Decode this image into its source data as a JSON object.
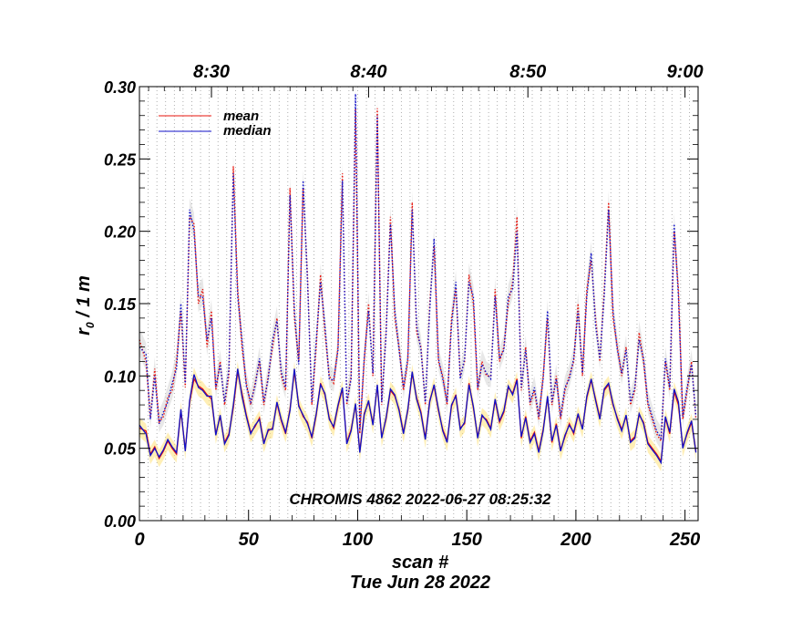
{
  "chart_data": {
    "type": "line",
    "title": "",
    "annotation": "CHROMIS 4862 2022-06-27 08:25:32",
    "xlabel": "scan #",
    "date_label": "Tue Jun 28 2022",
    "ylabel_main": "r",
    "ylabel_sub": "0",
    "ylabel_rest": " / 1 m",
    "xlim": [
      0,
      256
    ],
    "ylim": [
      0.0,
      0.3
    ],
    "x_ticks": [
      "0",
      "50",
      "100",
      "150",
      "200",
      "250"
    ],
    "y_ticks": [
      "0.00",
      "0.05",
      "0.10",
      "0.15",
      "0.20",
      "0.25",
      "0.30"
    ],
    "top_axis_ticks": [
      "8:30",
      "8:40",
      "8:50",
      "9:00"
    ],
    "top_axis_tick_scans": [
      33,
      105,
      178,
      250
    ],
    "legend_placement": "top-left",
    "grid": "vertical dotted lines at every scan boundary",
    "colors": {
      "mean": "#e8140c",
      "median": "#1010c8",
      "band_yellow": "#ffe27a",
      "band_gray": "#d8d8d8",
      "grid": "#9a9a9a"
    },
    "series": [
      {
        "name": "mean",
        "style": "solid",
        "x": [
          0,
          3,
          5,
          7,
          9,
          11,
          13,
          15,
          17,
          19,
          21,
          23,
          25,
          27,
          29,
          31,
          33,
          35,
          37,
          39,
          41,
          43,
          45,
          47,
          49,
          51,
          53,
          55,
          57,
          59,
          61,
          63,
          65,
          67,
          69,
          71,
          73,
          75,
          77,
          79,
          81,
          83,
          85,
          87,
          89,
          91,
          93,
          95,
          97,
          99,
          101,
          103,
          105,
          107,
          109,
          111,
          113,
          115,
          117,
          119,
          121,
          123,
          125,
          127,
          129,
          131,
          133,
          135,
          137,
          139,
          141,
          143,
          145,
          147,
          149,
          151,
          153,
          155,
          157,
          159,
          161,
          163,
          165,
          167,
          169,
          171,
          173,
          175,
          177,
          179,
          181,
          183,
          185,
          187,
          189,
          191,
          193,
          195,
          197,
          199,
          201,
          203,
          205,
          207,
          209,
          211,
          213,
          215,
          217,
          219,
          221,
          223,
          225,
          227,
          229,
          231,
          233,
          235,
          237,
          239,
          241,
          243,
          245,
          247,
          249,
          251,
          253,
          255
        ],
        "values": [
          0.064,
          0.062,
          0.046,
          0.051,
          0.043,
          0.048,
          0.055,
          0.05,
          0.046,
          0.076,
          0.049,
          0.082,
          0.098,
          0.093,
          0.091,
          0.087,
          0.084,
          0.06,
          0.072,
          0.054,
          0.06,
          0.078,
          0.103,
          0.088,
          0.073,
          0.061,
          0.065,
          0.071,
          0.054,
          0.062,
          0.064,
          0.081,
          0.069,
          0.06,
          0.077,
          0.103,
          0.08,
          0.072,
          0.068,
          0.057,
          0.073,
          0.095,
          0.087,
          0.071,
          0.064,
          0.079,
          0.091,
          0.054,
          0.063,
          0.08,
          0.048,
          0.074,
          0.082,
          0.067,
          0.093,
          0.058,
          0.07,
          0.09,
          0.086,
          0.077,
          0.061,
          0.076,
          0.102,
          0.085,
          0.075,
          0.057,
          0.083,
          0.093,
          0.076,
          0.063,
          0.055,
          0.079,
          0.087,
          0.064,
          0.067,
          0.095,
          0.078,
          0.058,
          0.072,
          0.07,
          0.064,
          0.083,
          0.068,
          0.075,
          0.092,
          0.088,
          0.098,
          0.057,
          0.072,
          0.055,
          0.061,
          0.048,
          0.063,
          0.085,
          0.054,
          0.067,
          0.049,
          0.058,
          0.067,
          0.06,
          0.073,
          0.064,
          0.085,
          0.097,
          0.084,
          0.071,
          0.09,
          0.094,
          0.08,
          0.071,
          0.063,
          0.072,
          0.055,
          0.058,
          0.073,
          0.068,
          0.054,
          0.05,
          0.046,
          0.041,
          0.071,
          0.06,
          0.089,
          0.08,
          0.051,
          0.06,
          0.068,
          0.048
        ]
      },
      {
        "name": "median",
        "style": "solid",
        "x": [
          0,
          3,
          5,
          7,
          9,
          11,
          13,
          15,
          17,
          19,
          21,
          23,
          25,
          27,
          29,
          31,
          33,
          35,
          37,
          39,
          41,
          43,
          45,
          47,
          49,
          51,
          53,
          55,
          57,
          59,
          61,
          63,
          65,
          67,
          69,
          71,
          73,
          75,
          77,
          79,
          81,
          83,
          85,
          87,
          89,
          91,
          93,
          95,
          97,
          99,
          101,
          103,
          105,
          107,
          109,
          111,
          113,
          115,
          117,
          119,
          121,
          123,
          125,
          127,
          129,
          131,
          133,
          135,
          137,
          139,
          141,
          143,
          145,
          147,
          149,
          151,
          153,
          155,
          157,
          159,
          161,
          163,
          165,
          167,
          169,
          171,
          173,
          175,
          177,
          179,
          181,
          183,
          185,
          187,
          189,
          191,
          193,
          195,
          197,
          199,
          201,
          203,
          205,
          207,
          209,
          211,
          213,
          215,
          217,
          219,
          221,
          223,
          225,
          227,
          229,
          231,
          233,
          235,
          237,
          239,
          241,
          243,
          245,
          247,
          249,
          251,
          253,
          255
        ],
        "values": [
          0.066,
          0.06,
          0.045,
          0.05,
          0.044,
          0.049,
          0.056,
          0.051,
          0.047,
          0.077,
          0.048,
          0.083,
          0.101,
          0.092,
          0.09,
          0.086,
          0.086,
          0.059,
          0.073,
          0.053,
          0.059,
          0.08,
          0.105,
          0.086,
          0.072,
          0.06,
          0.066,
          0.07,
          0.053,
          0.063,
          0.063,
          0.082,
          0.07,
          0.061,
          0.076,
          0.105,
          0.079,
          0.073,
          0.067,
          0.058,
          0.074,
          0.094,
          0.088,
          0.07,
          0.065,
          0.08,
          0.092,
          0.053,
          0.062,
          0.081,
          0.047,
          0.073,
          0.083,
          0.066,
          0.094,
          0.057,
          0.071,
          0.091,
          0.087,
          0.076,
          0.06,
          0.077,
          0.103,
          0.084,
          0.074,
          0.056,
          0.082,
          0.094,
          0.077,
          0.062,
          0.054,
          0.08,
          0.086,
          0.063,
          0.068,
          0.094,
          0.079,
          0.057,
          0.073,
          0.069,
          0.063,
          0.084,
          0.069,
          0.076,
          0.093,
          0.087,
          0.097,
          0.058,
          0.071,
          0.054,
          0.06,
          0.047,
          0.062,
          0.086,
          0.055,
          0.066,
          0.048,
          0.059,
          0.066,
          0.061,
          0.074,
          0.063,
          0.086,
          0.098,
          0.083,
          0.07,
          0.091,
          0.095,
          0.081,
          0.07,
          0.062,
          0.073,
          0.054,
          0.057,
          0.074,
          0.067,
          0.053,
          0.049,
          0.045,
          0.04,
          0.072,
          0.061,
          0.091,
          0.082,
          0.05,
          0.061,
          0.069,
          0.047
        ]
      },
      {
        "name": "mean (upper)",
        "style": "dotted",
        "x": [
          0,
          3,
          5,
          7,
          9,
          11,
          13,
          15,
          17,
          19,
          21,
          23,
          25,
          27,
          29,
          31,
          33,
          35,
          37,
          39,
          41,
          43,
          45,
          47,
          49,
          51,
          53,
          55,
          57,
          59,
          61,
          63,
          65,
          67,
          69,
          71,
          73,
          75,
          77,
          79,
          81,
          83,
          85,
          87,
          89,
          91,
          93,
          95,
          97,
          99,
          101,
          103,
          105,
          107,
          109,
          111,
          113,
          115,
          117,
          119,
          121,
          123,
          125,
          127,
          129,
          131,
          133,
          135,
          137,
          139,
          141,
          143,
          145,
          147,
          149,
          151,
          153,
          155,
          157,
          159,
          161,
          163,
          165,
          167,
          169,
          171,
          173,
          175,
          177,
          179,
          181,
          183,
          185,
          187,
          189,
          191,
          193,
          195,
          197,
          199,
          201,
          203,
          205,
          207,
          209,
          211,
          213,
          215,
          217,
          219,
          221,
          223,
          225,
          227,
          229,
          231,
          233,
          235,
          237,
          239,
          241,
          243,
          245,
          247,
          249,
          251,
          253,
          255
        ],
        "values": [
          0.125,
          0.11,
          0.071,
          0.105,
          0.068,
          0.072,
          0.085,
          0.09,
          0.11,
          0.145,
          0.092,
          0.21,
          0.205,
          0.15,
          0.16,
          0.12,
          0.145,
          0.09,
          0.11,
          0.08,
          0.1,
          0.245,
          0.16,
          0.12,
          0.095,
          0.08,
          0.095,
          0.11,
          0.08,
          0.1,
          0.12,
          0.14,
          0.1,
          0.09,
          0.23,
          0.14,
          0.11,
          0.23,
          0.17,
          0.08,
          0.12,
          0.17,
          0.13,
          0.1,
          0.095,
          0.12,
          0.24,
          0.08,
          0.1,
          0.285,
          0.06,
          0.11,
          0.15,
          0.1,
          0.285,
          0.08,
          0.13,
          0.21,
          0.14,
          0.12,
          0.09,
          0.11,
          0.22,
          0.13,
          0.12,
          0.08,
          0.15,
          0.19,
          0.11,
          0.1,
          0.08,
          0.14,
          0.16,
          0.1,
          0.11,
          0.17,
          0.15,
          0.09,
          0.11,
          0.1,
          0.1,
          0.16,
          0.11,
          0.12,
          0.15,
          0.165,
          0.21,
          0.09,
          0.12,
          0.08,
          0.09,
          0.07,
          0.1,
          0.14,
          0.08,
          0.1,
          0.07,
          0.09,
          0.1,
          0.11,
          0.15,
          0.1,
          0.16,
          0.18,
          0.14,
          0.11,
          0.16,
          0.22,
          0.14,
          0.12,
          0.1,
          0.12,
          0.08,
          0.09,
          0.13,
          0.11,
          0.08,
          0.07,
          0.06,
          0.055,
          0.11,
          0.09,
          0.2,
          0.16,
          0.07,
          0.09,
          0.11,
          0.07
        ]
      },
      {
        "name": "median (upper)",
        "style": "dotted",
        "x": [
          0,
          3,
          5,
          7,
          9,
          11,
          13,
          15,
          17,
          19,
          21,
          23,
          25,
          27,
          29,
          31,
          33,
          35,
          37,
          39,
          41,
          43,
          45,
          47,
          49,
          51,
          53,
          55,
          57,
          59,
          61,
          63,
          65,
          67,
          69,
          71,
          73,
          75,
          77,
          79,
          81,
          83,
          85,
          87,
          89,
          91,
          93,
          95,
          97,
          99,
          101,
          103,
          105,
          107,
          109,
          111,
          113,
          115,
          117,
          119,
          121,
          123,
          125,
          127,
          129,
          131,
          133,
          135,
          137,
          139,
          141,
          143,
          145,
          147,
          149,
          151,
          153,
          155,
          157,
          159,
          161,
          163,
          165,
          167,
          169,
          171,
          173,
          175,
          177,
          179,
          181,
          183,
          185,
          187,
          189,
          191,
          193,
          195,
          197,
          199,
          201,
          203,
          205,
          207,
          209,
          211,
          213,
          215,
          217,
          219,
          221,
          223,
          225,
          227,
          229,
          231,
          233,
          235,
          237,
          239,
          241,
          243,
          245,
          247,
          249,
          251,
          253,
          255
        ],
        "values": [
          0.12,
          0.115,
          0.07,
          0.1,
          0.067,
          0.075,
          0.082,
          0.095,
          0.105,
          0.15,
          0.095,
          0.215,
          0.2,
          0.155,
          0.155,
          0.125,
          0.14,
          0.092,
          0.108,
          0.082,
          0.105,
          0.24,
          0.155,
          0.125,
          0.093,
          0.082,
          0.093,
          0.112,
          0.082,
          0.098,
          0.125,
          0.138,
          0.103,
          0.092,
          0.225,
          0.145,
          0.108,
          0.235,
          0.165,
          0.082,
          0.125,
          0.165,
          0.135,
          0.098,
          0.097,
          0.118,
          0.235,
          0.082,
          0.098,
          0.295,
          0.062,
          0.112,
          0.145,
          0.102,
          0.28,
          0.082,
          0.128,
          0.205,
          0.145,
          0.118,
          0.092,
          0.112,
          0.215,
          0.135,
          0.118,
          0.082,
          0.145,
          0.195,
          0.112,
          0.098,
          0.082,
          0.135,
          0.165,
          0.098,
          0.112,
          0.165,
          0.155,
          0.092,
          0.108,
          0.102,
          0.098,
          0.155,
          0.112,
          0.118,
          0.155,
          0.16,
          0.2,
          0.092,
          0.118,
          0.082,
          0.092,
          0.072,
          0.098,
          0.145,
          0.082,
          0.098,
          0.072,
          0.092,
          0.098,
          0.112,
          0.145,
          0.102,
          0.155,
          0.185,
          0.135,
          0.112,
          0.155,
          0.215,
          0.145,
          0.118,
          0.102,
          0.118,
          0.082,
          0.092,
          0.125,
          0.112,
          0.082,
          0.072,
          0.062,
          0.057,
          0.112,
          0.092,
          0.205,
          0.155,
          0.072,
          0.092,
          0.108,
          0.072
        ]
      }
    ]
  }
}
